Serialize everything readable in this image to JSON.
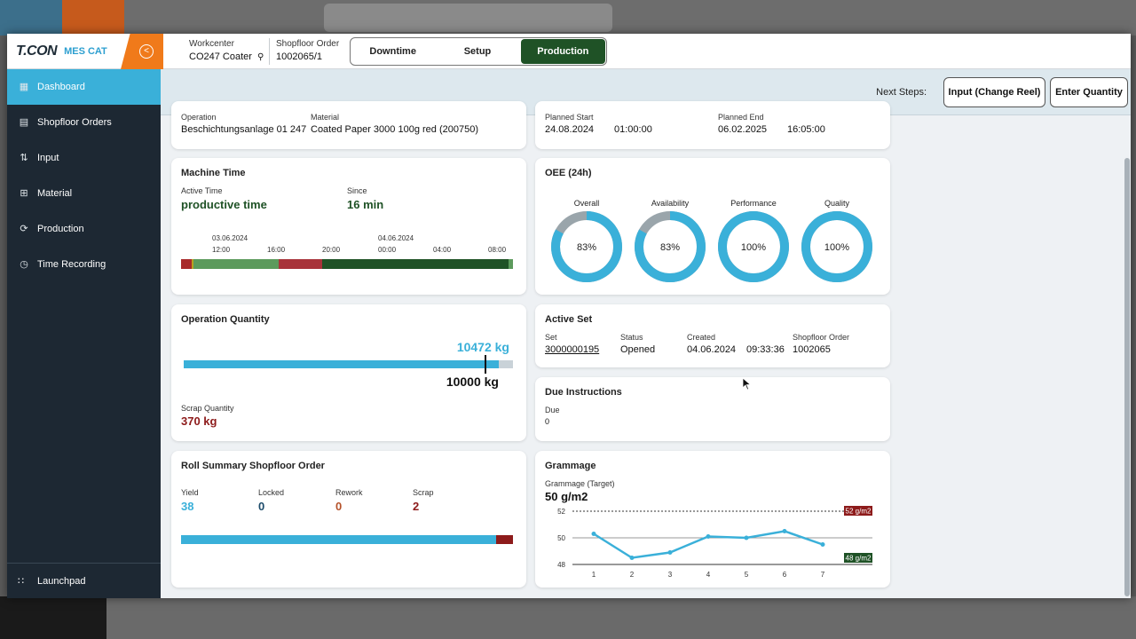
{
  "shell": {
    "brand": "T.CON",
    "app": "MES CAT",
    "workcenter_label": "Workcenter",
    "workcenter_value": "CO247 Coater",
    "order_label": "Shopfloor Order",
    "order_value": "1002065/1",
    "tabs": [
      {
        "label": "Downtime"
      },
      {
        "label": "Setup"
      },
      {
        "label": "Production"
      }
    ]
  },
  "sidebar": {
    "items": [
      {
        "label": "Dashboard",
        "icon": "dashboard-icon"
      },
      {
        "label": "Shopfloor Orders",
        "icon": "clipboard-icon"
      },
      {
        "label": "Input",
        "icon": "arrows-icon"
      },
      {
        "label": "Material",
        "icon": "material-icon"
      },
      {
        "label": "Production",
        "icon": "refresh-icon"
      },
      {
        "label": "Time Recording",
        "icon": "clock-icon"
      }
    ],
    "launchpad": "Launchpad"
  },
  "toolbar": {
    "next_steps": "Next Steps:",
    "btn_change_reel": "Input (Change Reel)",
    "btn_enter_quantity": "Enter Quantity"
  },
  "operation_card": {
    "operation_label": "Operation",
    "operation_value": "Beschichtungsanlage 01 247",
    "material_label": "Material",
    "material_value": "Coated Paper 3000 100g red (200750)"
  },
  "planned_card": {
    "start_label": "Planned Start",
    "start_date": "24.08.2024",
    "start_time": "01:00:00",
    "end_label": "Planned End",
    "end_date": "06.02.2025",
    "end_time": "16:05:00"
  },
  "machine_time": {
    "title": "Machine Time",
    "active_label": "Active Time",
    "active_value": "productive time",
    "since_label": "Since",
    "since_value": "16 min",
    "dates": [
      "03.06.2024",
      "04.06.2024"
    ],
    "ticks": [
      "12:00",
      "16:00",
      "20:00",
      "00:00",
      "04:00",
      "08:00"
    ]
  },
  "oee": {
    "title": "OEE (24h)",
    "items": [
      {
        "label": "Overall",
        "value": 83,
        "text": "83%"
      },
      {
        "label": "Availability",
        "value": 83,
        "text": "83%"
      },
      {
        "label": "Performance",
        "value": 100,
        "text": "100%"
      },
      {
        "label": "Quality",
        "value": 100,
        "text": "100%"
      }
    ],
    "color_fill": "#3ab0d9",
    "color_rest": "#9aa5ab"
  },
  "operation_quantity": {
    "title": "Operation Quantity",
    "actual": "10472 kg",
    "target": "10000 kg",
    "actual_value": 10472,
    "target_value": 10000,
    "scrap_label": "Scrap Quantity",
    "scrap_value": "370 kg"
  },
  "active_set": {
    "title": "Active Set",
    "set_label": "Set",
    "set_value": "3000000195",
    "status_label": "Status",
    "status_value": "Opened",
    "created_label": "Created",
    "created_date": "04.06.2024",
    "created_time": "09:33:36",
    "order_label": "Shopfloor Order",
    "order_value": "1002065"
  },
  "due_instructions": {
    "title": "Due Instructions",
    "due_label": "Due",
    "due_value": "0"
  },
  "roll_summary": {
    "title": "Roll Summary Shopfloor Order",
    "yield_label": "Yield",
    "yield_value": "38",
    "locked_label": "Locked",
    "locked_value": "0",
    "rework_label": "Rework",
    "rework_value": "0",
    "scrap_label": "Scrap",
    "scrap_value": "2",
    "yield_count": 38,
    "scrap_count": 2
  },
  "grammage": {
    "title": "Grammage",
    "target_label": "Grammage (Target)",
    "target_value": "50 g/m2",
    "upper_tag": "52 g/m2",
    "lower_tag": "48 g/m2"
  },
  "chart_data": {
    "type": "line",
    "x": [
      1,
      2,
      3,
      4,
      5,
      6,
      7
    ],
    "series": [
      {
        "values": [
          50.3,
          48.5,
          48.9,
          50.1,
          50.0,
          50.5,
          49.5
        ]
      }
    ],
    "ylim": [
      48,
      52
    ],
    "yticks": [
      48,
      50,
      52
    ],
    "target": 50,
    "upper_limit": 52,
    "lower_limit": 48
  }
}
